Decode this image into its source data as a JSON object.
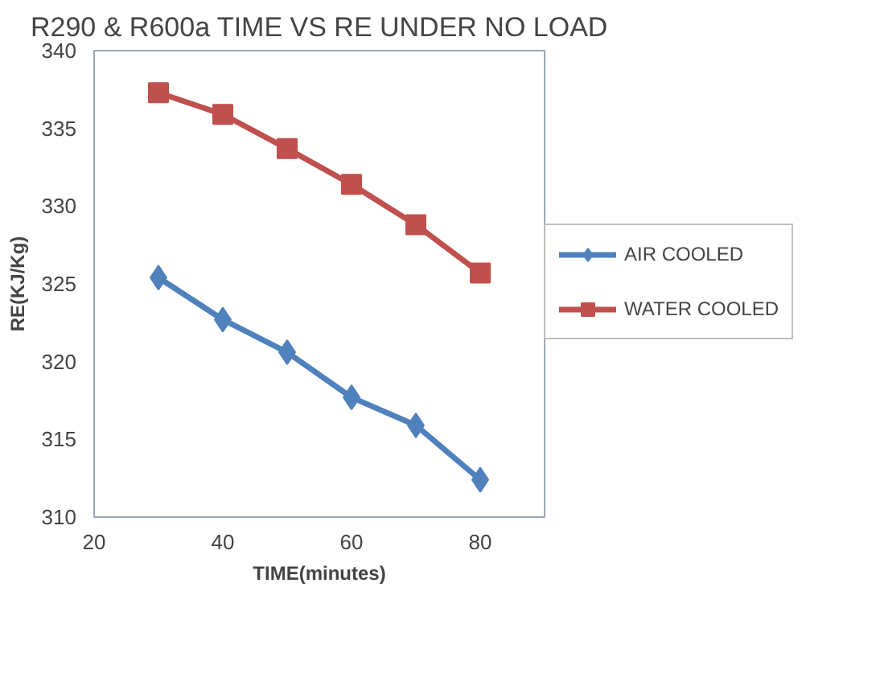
{
  "chart_data": {
    "type": "line",
    "title": "R290 & R600a TIME VS RE UNDER NO LOAD",
    "xlabel": "TIME(minutes)",
    "ylabel": "RE(KJ/Kg)",
    "x": [
      30,
      40,
      50,
      60,
      70,
      80
    ],
    "series": [
      {
        "name": "AIR COOLED",
        "color": "#4f81bd",
        "marker": "diamond",
        "values": [
          325.4,
          322.7,
          320.6,
          317.7,
          315.9,
          312.4
        ]
      },
      {
        "name": "WATER COOLED",
        "color": "#c0504d",
        "marker": "square",
        "values": [
          337.3,
          335.9,
          333.7,
          331.4,
          328.8,
          325.7
        ]
      }
    ],
    "xlim": [
      20,
      90
    ],
    "xticks": [
      20,
      40,
      60,
      80
    ],
    "ylim": [
      310,
      340
    ],
    "yticks": [
      310,
      315,
      320,
      325,
      330,
      335,
      340
    ],
    "grid": false,
    "legend": "right",
    "line_style": "solid"
  }
}
